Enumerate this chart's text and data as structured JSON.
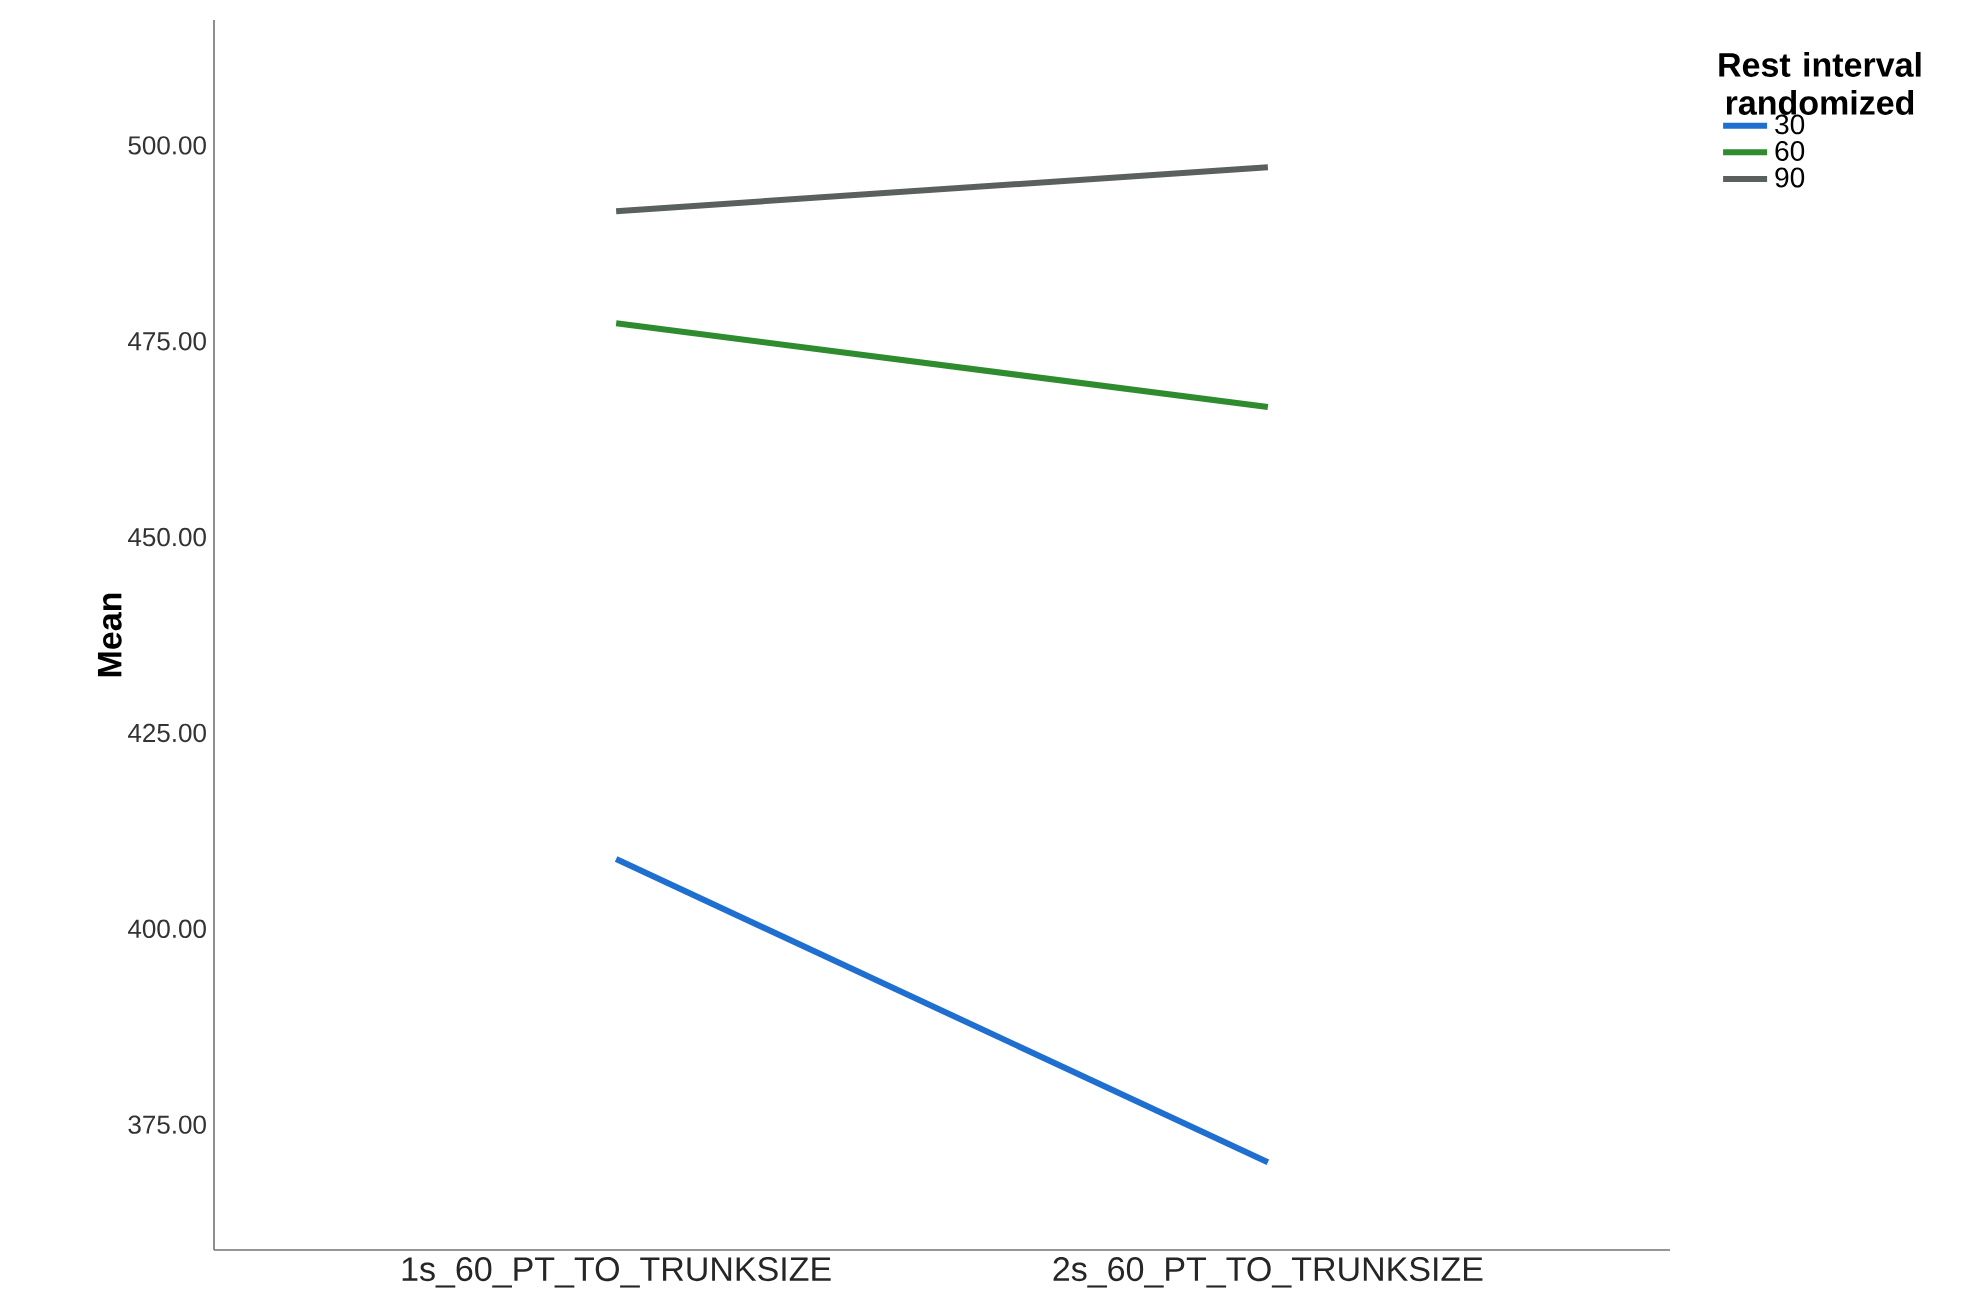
{
  "chart_data": {
    "type": "line",
    "ylabel": "Mean",
    "legend_title": "Rest interval randomized",
    "categories": [
      "1s_60_PT_TO_TRUNKSIZE",
      "2s_60_PT_TO_TRUNKSIZE"
    ],
    "series": [
      {
        "name": "30",
        "color": "#1f6fd1",
        "values": [
          408.9,
          370.2
        ]
      },
      {
        "name": "60",
        "color": "#2e8b2e",
        "values": [
          477.3,
          466.6
        ]
      },
      {
        "name": "90",
        "color": "#5a5f5f",
        "values": [
          491.6,
          497.2
        ]
      }
    ],
    "ylim": [
      359,
      516
    ],
    "yticks": [
      {
        "value": 375,
        "label": "375.00"
      },
      {
        "value": 400,
        "label": "400.00"
      },
      {
        "value": 425,
        "label": "425.00"
      },
      {
        "value": 450,
        "label": "450.00"
      },
      {
        "value": 475,
        "label": "475.00"
      },
      {
        "value": 500,
        "label": "500.00"
      }
    ],
    "legend": "top right",
    "marker": "none",
    "line_style": "solid"
  }
}
